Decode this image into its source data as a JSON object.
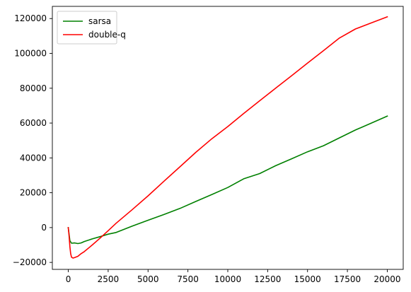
{
  "chart_data": {
    "type": "line",
    "title": "",
    "xlabel": "",
    "ylabel": "",
    "xlim": [
      -1000,
      21000
    ],
    "ylim": [
      -24000,
      127000
    ],
    "x_ticks": [
      0,
      2500,
      5000,
      7500,
      10000,
      12500,
      15000,
      17500,
      20000
    ],
    "y_ticks": [
      -20000,
      0,
      20000,
      40000,
      60000,
      80000,
      100000,
      120000
    ],
    "grid": false,
    "legend_position": "top-left",
    "series": [
      {
        "name": "sarsa",
        "color": "#008000",
        "x": [
          0,
          100,
          200,
          400,
          600,
          800,
          1000,
          1500,
          2000,
          2500,
          3000,
          4000,
          5000,
          6000,
          7000,
          8000,
          9000,
          10000,
          11000,
          12000,
          13000,
          14000,
          15000,
          16000,
          17000,
          18000,
          19000,
          20000
        ],
        "y": [
          0,
          -7500,
          -9000,
          -8800,
          -9200,
          -8800,
          -8000,
          -6500,
          -5200,
          -3800,
          -2800,
          800,
          4200,
          7500,
          11000,
          15000,
          19000,
          23000,
          28000,
          31000,
          35500,
          39500,
          43500,
          47000,
          51500,
          56000,
          60000,
          64000
        ]
      },
      {
        "name": "double-q",
        "color": "#ff0000",
        "x": [
          0,
          50,
          100,
          150,
          200,
          300,
          400,
          600,
          800,
          1000,
          1500,
          2000,
          2500,
          3000,
          4000,
          5000,
          6000,
          7000,
          8000,
          9000,
          10000,
          11000,
          12000,
          13000,
          14000,
          15000,
          16000,
          17000,
          18000,
          19000,
          20000
        ],
        "y": [
          0,
          -5000,
          -11000,
          -15000,
          -17000,
          -17500,
          -17200,
          -16500,
          -15000,
          -13800,
          -10000,
          -6000,
          -1800,
          2500,
          10200,
          18200,
          26600,
          34900,
          43200,
          51000,
          58000,
          65500,
          72800,
          80000,
          87200,
          94400,
          101600,
          108800,
          114000,
          117500,
          121000
        ]
      }
    ]
  }
}
